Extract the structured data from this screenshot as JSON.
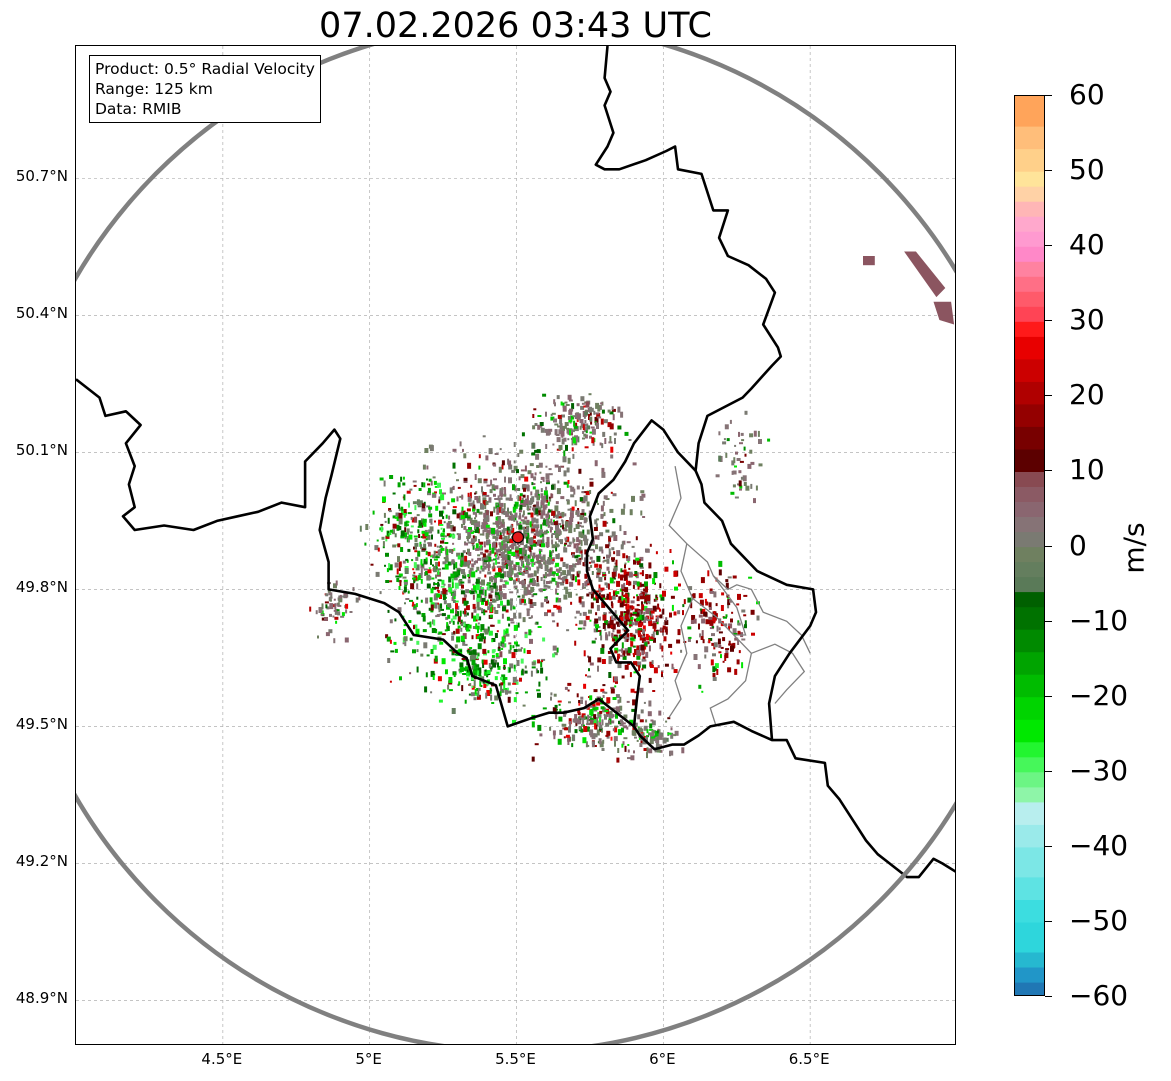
{
  "title": "07.02.2026 03:43 UTC",
  "info": {
    "product": "Product: 0.5° Radial Velocity",
    "range": "Range: 125 km",
    "source": "Data: RMIB"
  },
  "map": {
    "lon_min": 4.0,
    "lon_max": 7.0,
    "lat_min": 48.8,
    "lat_max": 50.99,
    "radar_site": {
      "lon": 5.505,
      "lat": 49.914
    },
    "range_km": 125,
    "range_ring_color": "#808080",
    "border_color": "#000000",
    "subregion_border_color": "#808080",
    "radar_marker_color": "#e31a1c",
    "lat_ticks": [
      {
        "value": 50.7,
        "label": "50.7°N"
      },
      {
        "value": 50.4,
        "label": "50.4°N"
      },
      {
        "value": 50.1,
        "label": "50.1°N"
      },
      {
        "value": 49.8,
        "label": "49.8°N"
      },
      {
        "value": 49.5,
        "label": "49.5°N"
      },
      {
        "value": 49.2,
        "label": "49.2°N"
      },
      {
        "value": 48.9,
        "label": "48.9°N"
      }
    ],
    "lon_ticks": [
      {
        "value": 4.5,
        "label": "4.5°E"
      },
      {
        "value": 5.0,
        "label": "5°E"
      },
      {
        "value": 5.5,
        "label": "5.5°E"
      },
      {
        "value": 6.0,
        "label": "6°E"
      },
      {
        "value": 6.5,
        "label": "6.5°E"
      }
    ],
    "echo_clusters": [
      {
        "lon": 5.52,
        "lat": 49.91,
        "sx": 0.28,
        "sy": 0.16,
        "n": 1300,
        "mix": "near-zero"
      },
      {
        "lon": 5.3,
        "lat": 49.78,
        "sx": 0.2,
        "sy": 0.14,
        "n": 420,
        "mix": "negative"
      },
      {
        "lon": 5.15,
        "lat": 49.93,
        "sx": 0.14,
        "sy": 0.12,
        "n": 200,
        "mix": "negative"
      },
      {
        "lon": 5.88,
        "lat": 49.75,
        "sx": 0.14,
        "sy": 0.12,
        "n": 480,
        "mix": "positive"
      },
      {
        "lon": 5.7,
        "lat": 50.17,
        "sx": 0.14,
        "sy": 0.05,
        "n": 170,
        "mix": "near-zero"
      },
      {
        "lon": 5.75,
        "lat": 49.52,
        "sx": 0.16,
        "sy": 0.06,
        "n": 220,
        "mix": "mixed"
      },
      {
        "lon": 6.18,
        "lat": 49.72,
        "sx": 0.1,
        "sy": 0.1,
        "n": 150,
        "mix": "positive"
      },
      {
        "lon": 5.4,
        "lat": 49.62,
        "sx": 0.16,
        "sy": 0.06,
        "n": 200,
        "mix": "negative"
      },
      {
        "lon": 4.88,
        "lat": 49.76,
        "sx": 0.06,
        "sy": 0.05,
        "n": 60,
        "mix": "near-zero"
      },
      {
        "lon": 6.25,
        "lat": 50.08,
        "sx": 0.08,
        "sy": 0.08,
        "n": 50,
        "mix": "near-zero"
      },
      {
        "lon": 5.95,
        "lat": 49.48,
        "sx": 0.08,
        "sy": 0.04,
        "n": 80,
        "mix": "near-zero"
      }
    ],
    "echo_patches": [
      {
        "points": [
          [
            6.82,
            50.54
          ],
          [
            6.86,
            50.54
          ],
          [
            6.96,
            50.46
          ],
          [
            6.93,
            50.44
          ]
        ],
        "color": "#8b5560"
      },
      {
        "points": [
          [
            6.92,
            50.43
          ],
          [
            6.98,
            50.43
          ],
          [
            6.99,
            50.38
          ],
          [
            6.94,
            50.39
          ]
        ],
        "color": "#8b5560"
      },
      {
        "points": [
          [
            6.68,
            50.53
          ],
          [
            6.72,
            50.53
          ],
          [
            6.72,
            50.51
          ],
          [
            6.68,
            50.51
          ]
        ],
        "color": "#8b5560"
      }
    ],
    "country_borders": [
      [
        [
          4.0,
          50.26
        ],
        [
          4.02,
          50.25
        ],
        [
          4.08,
          50.22
        ],
        [
          4.1,
          50.18
        ],
        [
          4.17,
          50.19
        ],
        [
          4.22,
          50.16
        ],
        [
          4.17,
          50.12
        ],
        [
          4.2,
          50.07
        ],
        [
          4.18,
          50.03
        ],
        [
          4.2,
          49.98
        ],
        [
          4.16,
          49.96
        ],
        [
          4.2,
          49.93
        ],
        [
          4.3,
          49.94
        ],
        [
          4.4,
          49.93
        ],
        [
          4.48,
          49.95
        ],
        [
          4.55,
          49.96
        ],
        [
          4.62,
          49.97
        ],
        [
          4.7,
          49.99
        ],
        [
          4.78,
          49.98
        ],
        [
          4.78,
          50.08
        ],
        [
          4.84,
          50.12
        ],
        [
          4.88,
          50.15
        ],
        [
          4.9,
          50.13
        ],
        [
          4.87,
          50.05
        ],
        [
          4.85,
          50.0
        ],
        [
          4.83,
          49.93
        ],
        [
          4.86,
          49.86
        ],
        [
          4.86,
          49.8
        ],
        [
          4.95,
          49.79
        ],
        [
          5.05,
          49.77
        ],
        [
          5.1,
          49.75
        ],
        [
          5.15,
          49.7
        ],
        [
          5.25,
          49.69
        ],
        [
          5.3,
          49.66
        ],
        [
          5.33,
          49.65
        ],
        [
          5.35,
          49.61
        ],
        [
          5.43,
          49.59
        ],
        [
          5.47,
          49.5
        ],
        [
          5.56,
          49.52
        ],
        [
          5.61,
          49.53
        ],
        [
          5.66,
          49.53
        ],
        [
          5.73,
          49.54
        ],
        [
          5.78,
          49.56
        ],
        [
          5.82,
          49.54
        ],
        [
          5.9,
          49.5
        ],
        [
          5.92,
          49.48
        ],
        [
          5.97,
          49.45
        ],
        [
          6.03,
          49.46
        ],
        [
          6.07,
          49.46
        ],
        [
          6.12,
          49.48
        ],
        [
          6.16,
          49.5
        ],
        [
          6.24,
          49.51
        ],
        [
          6.3,
          49.49
        ],
        [
          6.37,
          49.47
        ],
        [
          6.42,
          49.47
        ],
        [
          6.45,
          49.43
        ],
        [
          6.55,
          49.42
        ],
        [
          6.56,
          49.37
        ],
        [
          6.6,
          49.34
        ],
        [
          6.66,
          49.28
        ],
        [
          6.69,
          49.25
        ],
        [
          6.73,
          49.22
        ],
        [
          6.77,
          49.2
        ],
        [
          6.83,
          49.17
        ],
        [
          6.87,
          49.17
        ],
        [
          6.92,
          49.21
        ],
        [
          6.95,
          49.2
        ],
        [
          7.0,
          49.18
        ]
      ],
      [
        [
          5.81,
          50.99
        ],
        [
          5.8,
          50.92
        ],
        [
          5.82,
          50.89
        ],
        [
          5.8,
          50.86
        ],
        [
          5.83,
          50.8
        ],
        [
          5.81,
          50.77
        ],
        [
          5.77,
          50.73
        ],
        [
          5.8,
          50.72
        ],
        [
          5.85,
          50.72
        ],
        [
          5.94,
          50.74
        ],
        [
          6.01,
          50.76
        ],
        [
          6.04,
          50.77
        ],
        [
          6.05,
          50.72
        ],
        [
          6.13,
          50.71
        ],
        [
          6.17,
          50.63
        ],
        [
          6.22,
          50.63
        ],
        [
          6.19,
          50.57
        ],
        [
          6.22,
          50.53
        ],
        [
          6.29,
          50.51
        ],
        [
          6.35,
          50.48
        ],
        [
          6.38,
          50.45
        ],
        [
          6.34,
          50.38
        ],
        [
          6.39,
          50.33
        ],
        [
          6.4,
          50.31
        ],
        [
          6.37,
          50.29
        ],
        [
          6.3,
          50.24
        ],
        [
          6.27,
          50.22
        ],
        [
          6.15,
          50.18
        ],
        [
          6.12,
          50.12
        ],
        [
          6.11,
          50.06
        ],
        [
          6.13,
          50.03
        ],
        [
          6.14,
          49.99
        ],
        [
          6.2,
          49.95
        ],
        [
          6.23,
          49.9
        ],
        [
          6.32,
          49.84
        ],
        [
          6.42,
          49.81
        ],
        [
          6.51,
          49.8
        ],
        [
          6.52,
          49.75
        ],
        [
          6.5,
          49.72
        ],
        [
          6.43,
          49.66
        ],
        [
          6.38,
          49.61
        ],
        [
          6.36,
          49.55
        ],
        [
          6.37,
          49.47
        ]
      ],
      [
        [
          6.11,
          50.06
        ],
        [
          6.05,
          50.1
        ],
        [
          6.0,
          50.15
        ],
        [
          5.96,
          50.17
        ],
        [
          5.9,
          50.12
        ],
        [
          5.87,
          50.08
        ],
        [
          5.83,
          50.04
        ],
        [
          5.78,
          50.01
        ],
        [
          5.75,
          49.96
        ],
        [
          5.76,
          49.91
        ],
        [
          5.74,
          49.88
        ],
        [
          5.74,
          49.84
        ],
        [
          5.76,
          49.8
        ],
        [
          5.84,
          49.74
        ],
        [
          5.88,
          49.71
        ],
        [
          5.82,
          49.67
        ],
        [
          5.84,
          49.64
        ],
        [
          5.89,
          49.64
        ],
        [
          5.92,
          49.61
        ],
        [
          5.91,
          49.56
        ],
        [
          5.9,
          49.5
        ]
      ]
    ],
    "subregion_borders": [
      [
        [
          6.04,
          50.07
        ],
        [
          6.06,
          50.0
        ],
        [
          6.02,
          49.94
        ],
        [
          6.08,
          49.9
        ],
        [
          6.15,
          49.86
        ],
        [
          6.17,
          49.83
        ],
        [
          6.22,
          49.8
        ],
        [
          6.25,
          49.81
        ],
        [
          6.3,
          49.8
        ],
        [
          6.34,
          49.75
        ],
        [
          6.42,
          49.73
        ],
        [
          6.47,
          49.7
        ],
        [
          6.5,
          49.66
        ]
      ],
      [
        [
          6.08,
          49.9
        ],
        [
          6.06,
          49.84
        ],
        [
          6.1,
          49.78
        ],
        [
          6.18,
          49.74
        ],
        [
          6.24,
          49.7
        ],
        [
          6.3,
          49.66
        ],
        [
          6.28,
          49.6
        ],
        [
          6.22,
          49.56
        ],
        [
          6.16,
          49.54
        ],
        [
          6.18,
          49.5
        ]
      ],
      [
        [
          6.1,
          49.78
        ],
        [
          6.06,
          49.72
        ],
        [
          6.08,
          49.66
        ],
        [
          6.04,
          49.6
        ],
        [
          6.06,
          49.56
        ],
        [
          6.02,
          49.52
        ]
      ],
      [
        [
          6.17,
          49.83
        ],
        [
          6.25,
          49.76
        ],
        [
          6.28,
          49.7
        ],
        [
          6.24,
          49.7
        ]
      ],
      [
        [
          6.3,
          49.66
        ],
        [
          6.38,
          49.68
        ],
        [
          6.44,
          49.66
        ],
        [
          6.48,
          49.62
        ],
        [
          6.42,
          49.58
        ],
        [
          6.38,
          49.55
        ]
      ]
    ]
  },
  "colorbar": {
    "label": "m/s",
    "vmin": -60,
    "vmax": 60,
    "ticks": [
      "60",
      "50",
      "40",
      "30",
      "20",
      "10",
      "0",
      "−10",
      "−20",
      "−30",
      "−40",
      "−50",
      "−60"
    ],
    "stops": [
      {
        "from": -60,
        "to": -58,
        "color": "#2077b4"
      },
      {
        "from": -58,
        "to": -56,
        "color": "#2196c8"
      },
      {
        "from": -56,
        "to": -54,
        "color": "#26b8d0"
      },
      {
        "from": -54,
        "to": -50,
        "color": "#2ed6dc"
      },
      {
        "from": -50,
        "to": -47,
        "color": "#3cdde0"
      },
      {
        "from": -47,
        "to": -44,
        "color": "#5ee3e3"
      },
      {
        "from": -44,
        "to": -40,
        "color": "#7ce7e6"
      },
      {
        "from": -40,
        "to": -37,
        "color": "#9aeaea"
      },
      {
        "from": -37,
        "to": -34,
        "color": "#b8eeee"
      },
      {
        "from": -34,
        "to": -32,
        "color": "#8ef5a8"
      },
      {
        "from": -32,
        "to": -30,
        "color": "#6cf584"
      },
      {
        "from": -30,
        "to": -28,
        "color": "#46f75a"
      },
      {
        "from": -28,
        "to": -26,
        "color": "#22f530"
      },
      {
        "from": -26,
        "to": -23,
        "color": "#00e800"
      },
      {
        "from": -23,
        "to": -20,
        "color": "#00d400"
      },
      {
        "from": -20,
        "to": -17,
        "color": "#00bc00"
      },
      {
        "from": -17,
        "to": -14,
        "color": "#00a400"
      },
      {
        "from": -14,
        "to": -11,
        "color": "#008a00"
      },
      {
        "from": -11,
        "to": -8,
        "color": "#007200"
      },
      {
        "from": -8,
        "to": -6,
        "color": "#006000"
      },
      {
        "from": -6,
        "to": -4,
        "color": "#5a7a58"
      },
      {
        "from": -4,
        "to": -2,
        "color": "#647e5e"
      },
      {
        "from": -2,
        "to": 0,
        "color": "#6f8060"
      },
      {
        "from": 0,
        "to": 2,
        "color": "#7a7a72"
      },
      {
        "from": 2,
        "to": 4,
        "color": "#867376"
      },
      {
        "from": 4,
        "to": 6,
        "color": "#8a6670"
      },
      {
        "from": 6,
        "to": 8,
        "color": "#8b5a64"
      },
      {
        "from": 8,
        "to": 10,
        "color": "#884a52"
      },
      {
        "from": 10,
        "to": 13,
        "color": "#5c0000"
      },
      {
        "from": 13,
        "to": 16,
        "color": "#780000"
      },
      {
        "from": 16,
        "to": 19,
        "color": "#940000"
      },
      {
        "from": 19,
        "to": 22,
        "color": "#b00000"
      },
      {
        "from": 22,
        "to": 25,
        "color": "#cc0000"
      },
      {
        "from": 25,
        "to": 28,
        "color": "#e80000"
      },
      {
        "from": 28,
        "to": 30,
        "color": "#ff1a1a"
      },
      {
        "from": 30,
        "to": 32,
        "color": "#ff4455"
      },
      {
        "from": 32,
        "to": 34,
        "color": "#ff5a6a"
      },
      {
        "from": 34,
        "to": 36,
        "color": "#ff6f86"
      },
      {
        "from": 36,
        "to": 38,
        "color": "#ff82a0"
      },
      {
        "from": 38,
        "to": 40,
        "color": "#ff88c8"
      },
      {
        "from": 40,
        "to": 42,
        "color": "#ff9ad0"
      },
      {
        "from": 42,
        "to": 44,
        "color": "#ffa8cc"
      },
      {
        "from": 44,
        "to": 46,
        "color": "#ffb6b6"
      },
      {
        "from": 46,
        "to": 48,
        "color": "#ffd2a6"
      },
      {
        "from": 48,
        "to": 50,
        "color": "#ffe49a"
      },
      {
        "from": 50,
        "to": 53,
        "color": "#ffd08a"
      },
      {
        "from": 53,
        "to": 56,
        "color": "#ffbe7a"
      },
      {
        "from": 56,
        "to": 60,
        "color": "#ffa45a"
      }
    ]
  }
}
